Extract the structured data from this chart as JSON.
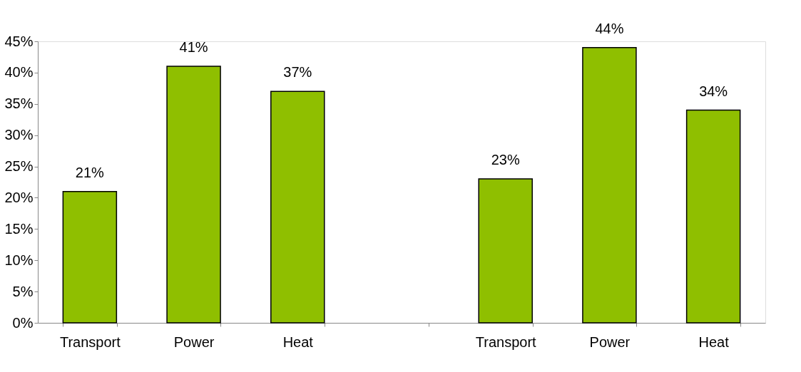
{
  "chart_data": {
    "type": "bar",
    "categories": [
      "Transport",
      "Power",
      "Heat",
      null,
      "Transport",
      "Power",
      "Heat"
    ],
    "values": [
      21,
      41,
      37,
      null,
      23,
      44,
      34
    ],
    "value_labels": [
      "21%",
      "41%",
      "37%",
      null,
      "23%",
      "44%",
      "34%"
    ],
    "color": "#8fbf00",
    "ylim": [
      0,
      45
    ],
    "yticks": [
      {
        "value": 0,
        "label": "0%"
      },
      {
        "value": 5,
        "label": "5%"
      },
      {
        "value": 10,
        "label": "10%"
      },
      {
        "value": 15,
        "label": "15%"
      },
      {
        "value": 20,
        "label": "20%"
      },
      {
        "value": 25,
        "label": "25%"
      },
      {
        "value": 30,
        "label": "30%"
      },
      {
        "value": 35,
        "label": "35%"
      },
      {
        "value": 40,
        "label": "40%"
      },
      {
        "value": 45,
        "label": "45%"
      }
    ],
    "grid": false
  }
}
